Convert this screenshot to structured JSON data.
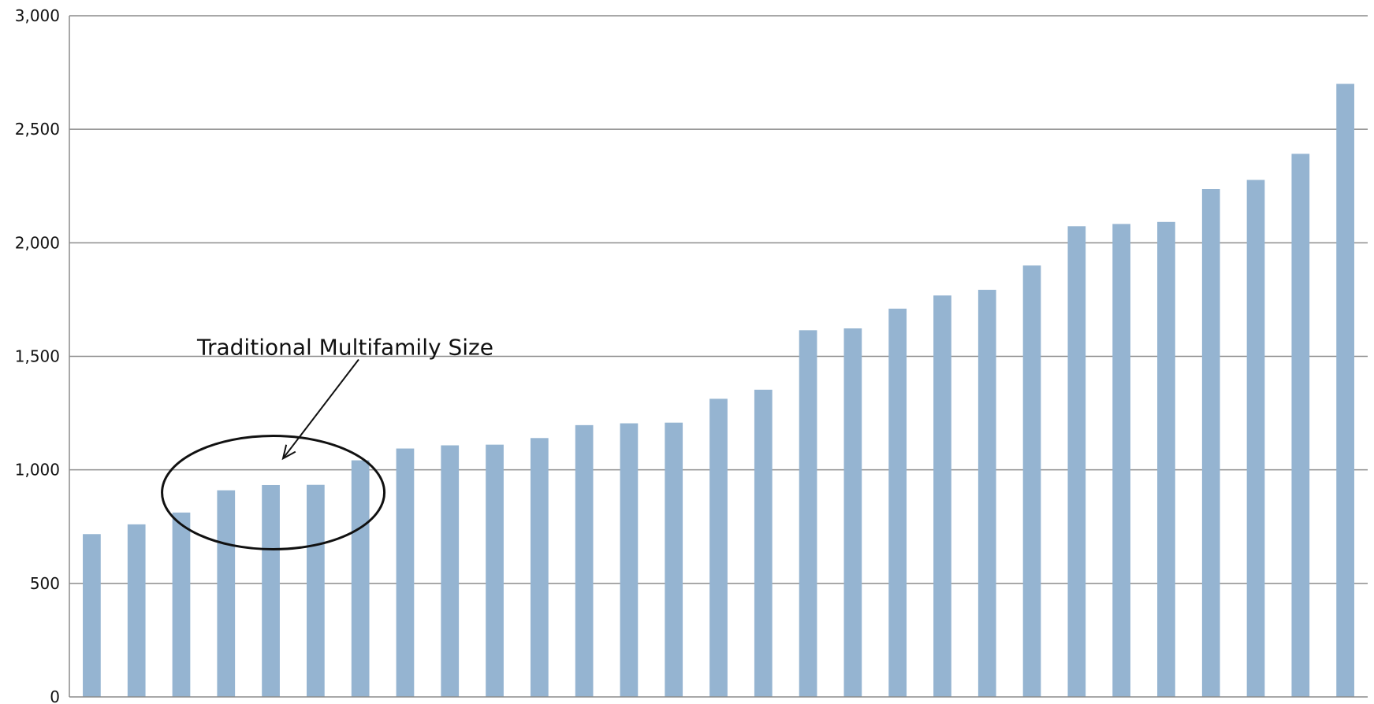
{
  "chart_data": {
    "type": "bar",
    "title": "",
    "xlabel": "",
    "ylabel": "",
    "ylim": [
      0,
      3000
    ],
    "yticks": [
      0,
      500,
      1000,
      1500,
      2000,
      2500,
      3000
    ],
    "ytick_labels": [
      "0",
      "500",
      "1,000",
      "1,500",
      "2,000",
      "2,500",
      "3,000"
    ],
    "grid": true,
    "legend": "none",
    "bar_color": "#95b4d1",
    "categories": [
      "",
      "",
      "",
      "",
      "",
      "",
      "",
      "",
      "",
      "",
      "",
      "",
      "",
      "",
      "",
      "",
      "",
      "",
      "",
      "",
      "",
      "",
      "",
      "",
      "",
      "",
      "",
      "",
      ""
    ],
    "values": [
      717,
      760,
      812,
      910,
      933,
      934,
      1042,
      1094,
      1108,
      1111,
      1140,
      1197,
      1205,
      1208,
      1313,
      1353,
      1615,
      1623,
      1710,
      1768,
      1793,
      1900,
      2073,
      2083,
      2092,
      2237,
      2277,
      2392,
      2700
    ],
    "annotation": {
      "text": "Traditional Multifamily Size",
      "shape": "ellipse"
    }
  }
}
